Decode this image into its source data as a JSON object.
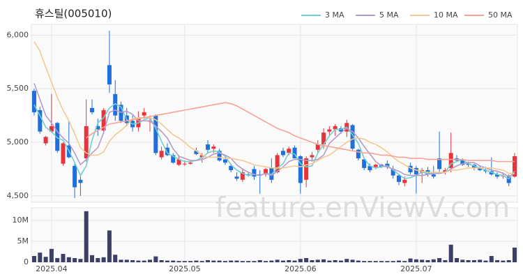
{
  "chart_data": {
    "type": "candlestick",
    "title": "휴스틸(005010)",
    "watermark": "feature.enViewV.com",
    "categories": [
      null,
      null,
      null,
      "2025.04",
      null,
      null,
      null,
      null,
      null,
      null,
      null,
      null,
      null,
      null,
      null,
      null,
      null,
      null,
      null,
      null,
      null,
      null,
      null,
      null,
      null,
      null,
      "2025.05",
      null,
      null,
      null,
      null,
      null,
      null,
      null,
      null,
      null,
      null,
      null,
      null,
      null,
      null,
      null,
      null,
      null,
      null,
      null,
      "2025.06",
      null,
      null,
      null,
      null,
      null,
      null,
      null,
      null,
      null,
      null,
      null,
      null,
      null,
      null,
      null,
      null,
      null,
      null,
      null,
      "2025.07",
      null,
      null,
      null,
      null,
      null,
      null,
      null,
      null,
      null,
      null,
      null,
      null,
      null,
      null,
      null,
      null,
      null
    ],
    "open": [
      5480,
      5300,
      4990,
      5100,
      5180,
      4800,
      4970,
      4780,
      4650,
      4850,
      5320,
      5150,
      5110,
      5720,
      5450,
      5350,
      5250,
      5200,
      5140,
      5250,
      5200,
      5250,
      4860,
      4950,
      4880,
      4790,
      4800,
      4800,
      4920,
      4860,
      4980,
      4940,
      4920,
      4840,
      4780,
      4680,
      4650,
      4700,
      4750,
      4700,
      4700,
      4760,
      4720,
      4920,
      4900,
      4950,
      4870,
      4650,
      4860,
      4930,
      4980,
      5100,
      5120,
      5130,
      5100,
      5160,
      4930,
      4840,
      4780,
      4770,
      4790,
      4800,
      4750,
      4690,
      4620,
      4780,
      4760,
      4720,
      4740,
      4700,
      4850,
      4720,
      4760,
      4850,
      4830,
      4800,
      4790,
      4760,
      4740,
      4730,
      4700,
      4690,
      4680,
      4680
    ],
    "high": [
      5500,
      5330,
      5060,
      5450,
      5190,
      5000,
      5200,
      4800,
      4700,
      5400,
      5400,
      5220,
      5320,
      6040,
      5580,
      5380,
      5320,
      5250,
      5290,
      5320,
      5250,
      5260,
      4960,
      4990,
      4900,
      4880,
      4830,
      4830,
      4950,
      4900,
      5020,
      4980,
      4940,
      4870,
      4800,
      4720,
      4750,
      4720,
      4780,
      4740,
      4760,
      4850,
      4900,
      4950,
      4960,
      4970,
      4880,
      4870,
      4910,
      5020,
      5130,
      5150,
      5170,
      5150,
      5210,
      5170,
      4940,
      4850,
      4800,
      4800,
      4800,
      4830,
      4780,
      4700,
      4680,
      4810,
      4780,
      4760,
      4770,
      4780,
      5100,
      4760,
      5090,
      4880,
      4850,
      4820,
      4800,
      4780,
      4770,
      4860,
      4720,
      4720,
      4700,
      4900
    ],
    "low": [
      5250,
      5080,
      4970,
      5090,
      4900,
      4780,
      4850,
      4480,
      4500,
      4820,
      5260,
      5060,
      5080,
      5460,
      5200,
      5180,
      5150,
      5100,
      5100,
      5220,
      5100,
      4880,
      4840,
      4870,
      4800,
      4780,
      4780,
      4790,
      4880,
      4810,
      4900,
      4900,
      4820,
      4790,
      4720,
      4640,
      4630,
      4680,
      4650,
      4520,
      4680,
      4620,
      4710,
      4860,
      4880,
      4850,
      4520,
      4580,
      4820,
      4900,
      4940,
      5050,
      5060,
      5080,
      5050,
      4920,
      4830,
      4740,
      4720,
      4750,
      4760,
      4750,
      4660,
      4600,
      4590,
      4700,
      4520,
      4620,
      4680,
      4660,
      4720,
      4700,
      4720,
      4820,
      4780,
      4770,
      4740,
      4730,
      4710,
      4690,
      4660,
      4660,
      4590,
      4670
    ],
    "close": [
      5280,
      5100,
      5050,
      5150,
      4920,
      4990,
      4860,
      4580,
      4620,
      5150,
      5280,
      5120,
      5300,
      5540,
      5250,
      5200,
      5180,
      5140,
      5220,
      5280,
      5200,
      4900,
      4920,
      4880,
      4810,
      4840,
      4800,
      4810,
      4890,
      4880,
      4930,
      4960,
      4830,
      4810,
      4740,
      4660,
      4720,
      4690,
      4680,
      4690,
      4750,
      4650,
      4880,
      4880,
      4940,
      4850,
      4620,
      4850,
      4880,
      4980,
      5090,
      5120,
      5150,
      5100,
      5180,
      4940,
      4850,
      4760,
      4740,
      4790,
      4770,
      4770,
      4690,
      4630,
      4650,
      4720,
      4700,
      4740,
      4700,
      4680,
      4750,
      4740,
      4900,
      4830,
      4790,
      4790,
      4760,
      4740,
      4730,
      4700,
      4680,
      4690,
      4620,
      4870
    ],
    "up_color": "#e8333c",
    "down_color": "#1f6fdc",
    "ylim": [
      4440,
      6100
    ],
    "yticks": [
      {
        "value": 4500,
        "label": "4,500"
      },
      {
        "value": 5000,
        "label": "5,000"
      },
      {
        "value": 5500,
        "label": "5,500"
      },
      {
        "value": 6000,
        "label": "6,000"
      }
    ],
    "grid": true,
    "legend": "top-right",
    "series": [
      {
        "name": "3 MA",
        "color": "#6fd0cf",
        "values": [
          5350,
          5250,
          5140,
          5100,
          5040,
          5020,
          4920,
          4810,
          4690,
          4780,
          5020,
          5180,
          5230,
          5320,
          5360,
          5330,
          5210,
          5170,
          5180,
          5210,
          5230,
          5130,
          5010,
          4900,
          4870,
          4840,
          4820,
          4820,
          4830,
          4860,
          4900,
          4920,
          4910,
          4870,
          4790,
          4740,
          4710,
          4690,
          4700,
          4690,
          4710,
          4700,
          4760,
          4800,
          4900,
          4890,
          4800,
          4770,
          4780,
          4900,
          4980,
          5060,
          5120,
          5120,
          5140,
          5070,
          4990,
          4850,
          4780,
          4760,
          4770,
          4780,
          4740,
          4700,
          4660,
          4670,
          4690,
          4720,
          4710,
          4710,
          4710,
          4720,
          4800,
          4820,
          4840,
          4800,
          4780,
          4760,
          4740,
          4720,
          4700,
          4690,
          4660,
          4730
        ]
      },
      {
        "name": "5 MA",
        "color": "#b59bcc",
        "values": [
          5550,
          5400,
          5250,
          5180,
          5100,
          5040,
          4990,
          4900,
          4790,
          4840,
          4900,
          4950,
          5090,
          5280,
          5300,
          5280,
          5290,
          5260,
          5200,
          5200,
          5200,
          5150,
          5100,
          5040,
          4940,
          4870,
          4850,
          4830,
          4830,
          4840,
          4860,
          4890,
          4900,
          4880,
          4850,
          4790,
          4750,
          4720,
          4700,
          4690,
          4710,
          4690,
          4730,
          4770,
          4820,
          4840,
          4840,
          4830,
          4830,
          4840,
          4880,
          4990,
          5040,
          5090,
          5130,
          5100,
          5040,
          4960,
          4890,
          4820,
          4780,
          4770,
          4750,
          4730,
          4700,
          4690,
          4690,
          4690,
          4700,
          4710,
          4710,
          4720,
          4750,
          4780,
          4800,
          4810,
          4810,
          4780,
          4760,
          4740,
          4730,
          4710,
          4680,
          4710
        ]
      },
      {
        "name": "10 MA",
        "color": "#f2c992",
        "values": [
          5940,
          5850,
          5700,
          5560,
          5420,
          5300,
          5200,
          5080,
          4950,
          4900,
          4880,
          4880,
          4910,
          5010,
          5070,
          5110,
          5160,
          5220,
          5230,
          5230,
          5230,
          5210,
          5170,
          5120,
          5070,
          5040,
          5000,
          4950,
          4920,
          4880,
          4860,
          4860,
          4860,
          4850,
          4850,
          4840,
          4830,
          4810,
          4790,
          4780,
          4770,
          4760,
          4760,
          4760,
          4770,
          4780,
          4770,
          4790,
          4800,
          4830,
          4860,
          4880,
          4920,
          4960,
          5000,
          5030,
          5040,
          5030,
          5000,
          4980,
          4950,
          4910,
          4860,
          4820,
          4790,
          4760,
          4740,
          4730,
          4720,
          4720,
          4720,
          4720,
          4740,
          4740,
          4750,
          4760,
          4760,
          4760,
          4760,
          4760,
          4750,
          4740,
          4710,
          4710
        ]
      },
      {
        "name": "50 MA",
        "color": "#f5a394",
        "values": [
          null,
          null,
          null,
          null,
          null,
          null,
          null,
          null,
          null,
          5040,
          5080,
          5110,
          5140,
          5170,
          5180,
          5190,
          5200,
          5210,
          5220,
          5230,
          5240,
          5250,
          5260,
          5270,
          5280,
          5290,
          5300,
          5310,
          5320,
          5330,
          5340,
          5350,
          5360,
          5370,
          5360,
          5340,
          5310,
          5280,
          5250,
          5220,
          5190,
          5160,
          5130,
          5110,
          5090,
          5060,
          5040,
          5020,
          5000,
          4980,
          4970,
          4960,
          4950,
          4940,
          4930,
          4920,
          4910,
          4900,
          4900,
          4890,
          4880,
          4880,
          4870,
          4860,
          4860,
          4850,
          4850,
          4850,
          4840,
          4840,
          4840,
          4840,
          4840,
          4840,
          4840,
          4830,
          4830,
          4830,
          4830,
          4830,
          4820,
          4820,
          4820,
          4820
        ]
      }
    ],
    "volume": {
      "color": "#3d3f66",
      "ylim": [
        0,
        13000000
      ],
      "yticks": [
        0,
        {
          "value": 5000000,
          "label": "5M"
        },
        {
          "value": 10000000,
          "label": "10M"
        }
      ],
      "values": [
        1500000,
        2300000,
        1300000,
        3200000,
        1000000,
        2000000,
        1200000,
        1000000,
        800000,
        12200000,
        1700000,
        1000000,
        1200000,
        7600000,
        1800000,
        600000,
        600000,
        500000,
        400000,
        400000,
        600000,
        1400000,
        500000,
        400000,
        400000,
        300000,
        300000,
        300000,
        400000,
        300000,
        500000,
        400000,
        400000,
        300000,
        400000,
        400000,
        300000,
        300000,
        300000,
        500000,
        300000,
        400000,
        600000,
        400000,
        500000,
        400000,
        800000,
        1000000,
        500000,
        600000,
        700000,
        400000,
        500000,
        400000,
        800000,
        600000,
        400000,
        300000,
        300000,
        300000,
        300000,
        300000,
        300000,
        400000,
        300000,
        900000,
        700000,
        600000,
        500000,
        700000,
        1000000,
        500000,
        4200000,
        1000000,
        600000,
        500000,
        500000,
        600000,
        400000,
        1500000,
        500000,
        400000,
        500000,
        3500000
      ]
    }
  }
}
